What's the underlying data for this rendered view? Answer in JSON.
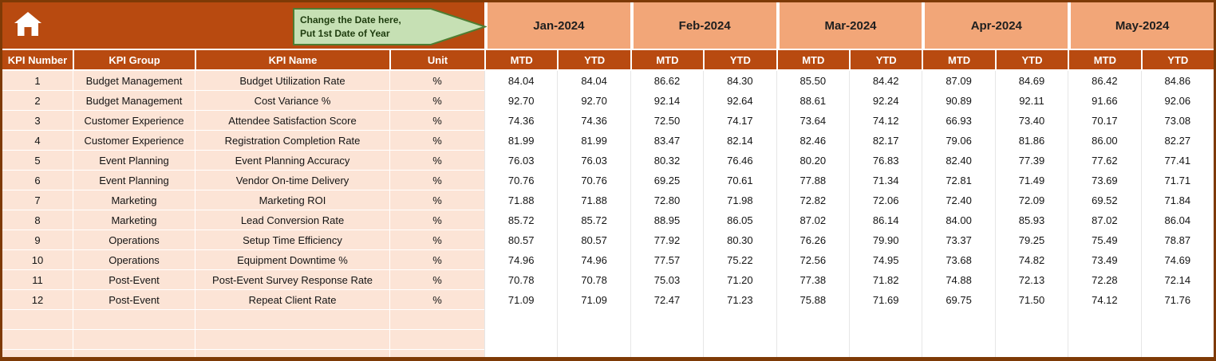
{
  "callout": {
    "line1": "Change the Date here,",
    "line2": "Put 1st Date of Year"
  },
  "columns": {
    "kpi_number": "KPI Number",
    "kpi_group": "KPI Group",
    "kpi_name": "KPI Name",
    "unit": "Unit",
    "mtd": "MTD",
    "ytd": "YTD"
  },
  "months": [
    "Jan-2024",
    "Feb-2024",
    "Mar-2024",
    "Apr-2024",
    "May-2024"
  ],
  "rows": [
    {
      "num": "1",
      "group": "Budget Management",
      "name": "Budget Utilization Rate",
      "unit": "%",
      "values": [
        "84.04",
        "84.04",
        "86.62",
        "84.30",
        "85.50",
        "84.42",
        "87.09",
        "84.69",
        "86.42",
        "84.86"
      ]
    },
    {
      "num": "2",
      "group": "Budget Management",
      "name": "Cost Variance %",
      "unit": "%",
      "values": [
        "92.70",
        "92.70",
        "92.14",
        "92.64",
        "88.61",
        "92.24",
        "90.89",
        "92.11",
        "91.66",
        "92.06"
      ]
    },
    {
      "num": "3",
      "group": "Customer Experience",
      "name": "Attendee Satisfaction Score",
      "unit": "%",
      "values": [
        "74.36",
        "74.36",
        "72.50",
        "74.17",
        "73.64",
        "74.12",
        "66.93",
        "73.40",
        "70.17",
        "73.08"
      ]
    },
    {
      "num": "4",
      "group": "Customer Experience",
      "name": "Registration Completion Rate",
      "unit": "%",
      "values": [
        "81.99",
        "81.99",
        "83.47",
        "82.14",
        "82.46",
        "82.17",
        "79.06",
        "81.86",
        "86.00",
        "82.27"
      ]
    },
    {
      "num": "5",
      "group": "Event Planning",
      "name": "Event Planning Accuracy",
      "unit": "%",
      "values": [
        "76.03",
        "76.03",
        "80.32",
        "76.46",
        "80.20",
        "76.83",
        "82.40",
        "77.39",
        "77.62",
        "77.41"
      ]
    },
    {
      "num": "6",
      "group": "Event Planning",
      "name": "Vendor On-time Delivery",
      "unit": "%",
      "values": [
        "70.76",
        "70.76",
        "69.25",
        "70.61",
        "77.88",
        "71.34",
        "72.81",
        "71.49",
        "73.69",
        "71.71"
      ]
    },
    {
      "num": "7",
      "group": "Marketing",
      "name": "Marketing ROI",
      "unit": "%",
      "values": [
        "71.88",
        "71.88",
        "72.80",
        "71.98",
        "72.82",
        "72.06",
        "72.40",
        "72.09",
        "69.52",
        "71.84"
      ]
    },
    {
      "num": "8",
      "group": "Marketing",
      "name": "Lead Conversion Rate",
      "unit": "%",
      "values": [
        "85.72",
        "85.72",
        "88.95",
        "86.05",
        "87.02",
        "86.14",
        "84.00",
        "85.93",
        "87.02",
        "86.04"
      ]
    },
    {
      "num": "9",
      "group": "Operations",
      "name": "Setup Time Efficiency",
      "unit": "%",
      "values": [
        "80.57",
        "80.57",
        "77.92",
        "80.30",
        "76.26",
        "79.90",
        "73.37",
        "79.25",
        "75.49",
        "78.87"
      ]
    },
    {
      "num": "10",
      "group": "Operations",
      "name": "Equipment Downtime %",
      "unit": "%",
      "values": [
        "74.96",
        "74.96",
        "77.57",
        "75.22",
        "72.56",
        "74.95",
        "73.68",
        "74.82",
        "73.49",
        "74.69"
      ]
    },
    {
      "num": "11",
      "group": "Post-Event",
      "name": "Post-Event Survey Response Rate",
      "unit": "%",
      "values": [
        "70.78",
        "70.78",
        "75.03",
        "71.20",
        "77.38",
        "71.82",
        "74.88",
        "72.13",
        "72.28",
        "72.14"
      ]
    },
    {
      "num": "12",
      "group": "Post-Event",
      "name": "Repeat Client Rate",
      "unit": "%",
      "values": [
        "71.09",
        "71.09",
        "72.47",
        "71.23",
        "75.88",
        "71.69",
        "69.75",
        "71.50",
        "74.12",
        "71.76"
      ]
    }
  ],
  "empty_row_count": 3,
  "colors": {
    "header_bg": "#B84A10",
    "month_bg": "#F2A678",
    "row_label_bg": "#FCE4D6",
    "outer_border": "#7E3A06",
    "callout_fill": "#C6E0B4",
    "callout_border": "#4F7D32",
    "callout_text": "#1E3C0E"
  }
}
